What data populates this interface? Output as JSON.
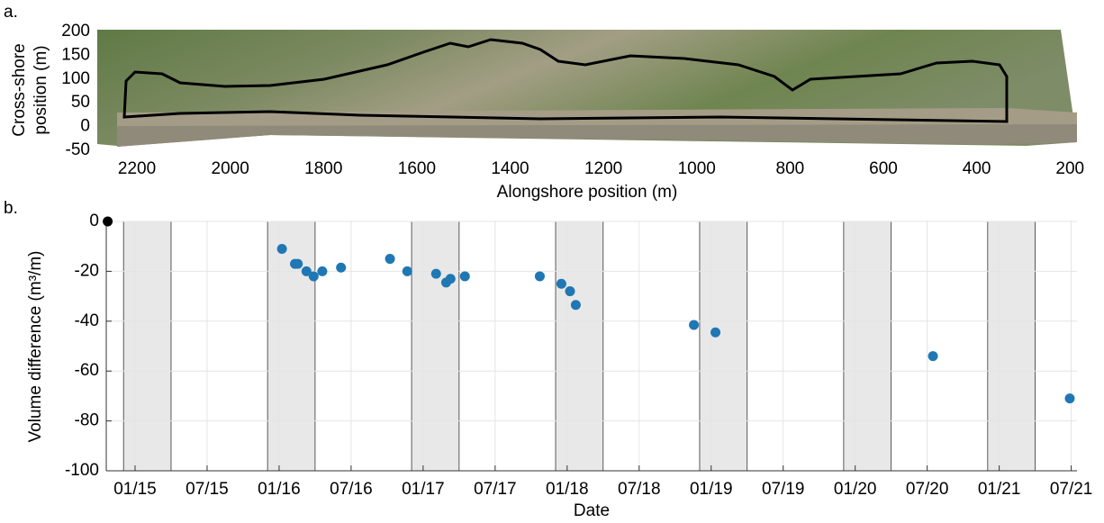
{
  "chart_data": [
    {
      "type": "image",
      "label": "a.",
      "xlabel": "Alongshore position (m)",
      "ylabel": [
        "Cross-shore",
        "position (m)"
      ],
      "xlim": [
        2285,
        185
      ],
      "xticks": [
        2200,
        2000,
        1800,
        1600,
        1400,
        1200,
        1000,
        800,
        600,
        400,
        200
      ],
      "ylim": [
        -50,
        200
      ],
      "yticks": [
        -50,
        0,
        50,
        100,
        150,
        200
      ]
    },
    {
      "type": "scatter",
      "label": "b.",
      "xlabel": "Date",
      "ylabel": "Volume difference (m³/m)",
      "xlim": [
        2014.8,
        2021.54
      ],
      "xticks": [
        {
          "value": 2015.0,
          "label": "01/15"
        },
        {
          "value": 2015.5,
          "label": "07/15"
        },
        {
          "value": 2016.0,
          "label": "01/16"
        },
        {
          "value": 2016.5,
          "label": "07/16"
        },
        {
          "value": 2017.0,
          "label": "01/17"
        },
        {
          "value": 2017.5,
          "label": "07/17"
        },
        {
          "value": 2018.0,
          "label": "01/18"
        },
        {
          "value": 2018.5,
          "label": "07/18"
        },
        {
          "value": 2019.0,
          "label": "01/19"
        },
        {
          "value": 2019.5,
          "label": "07/19"
        },
        {
          "value": 2020.0,
          "label": "01/20"
        },
        {
          "value": 2020.5,
          "label": "07/20"
        },
        {
          "value": 2021.0,
          "label": "01/21"
        },
        {
          "value": 2021.5,
          "label": "07/21"
        }
      ],
      "ylim": [
        -100,
        0
      ],
      "yticks": [
        -100,
        -80,
        -60,
        -40,
        -20,
        0
      ],
      "grid": true,
      "shaded_regions": [
        [
          2014.92,
          2015.25
        ],
        [
          2015.92,
          2016.25
        ],
        [
          2016.92,
          2017.25
        ],
        [
          2017.92,
          2018.25
        ],
        [
          2018.92,
          2019.25
        ],
        [
          2019.92,
          2020.25
        ],
        [
          2020.92,
          2021.25
        ]
      ],
      "series": [
        {
          "color": "#000000",
          "x": [
            2014.81
          ],
          "values": [
            0
          ]
        },
        {
          "color": "#1f77b4",
          "x": [
            2016.02,
            2016.11,
            2016.13,
            2016.19,
            2016.24,
            2016.3,
            2016.43,
            2016.77,
            2016.89,
            2017.09,
            2017.16,
            2017.19,
            2017.29,
            2017.81,
            2017.96,
            2018.02,
            2018.06,
            2018.88,
            2019.03,
            2020.54,
            2021.49
          ],
          "values": [
            -11,
            -17,
            -17,
            -20,
            -22,
            -20,
            -18.5,
            -15,
            -20,
            -21,
            -24.5,
            -23,
            -22,
            -22,
            -25,
            -28,
            -33.5,
            -41.5,
            -44.5,
            -54,
            -71
          ]
        }
      ]
    }
  ]
}
